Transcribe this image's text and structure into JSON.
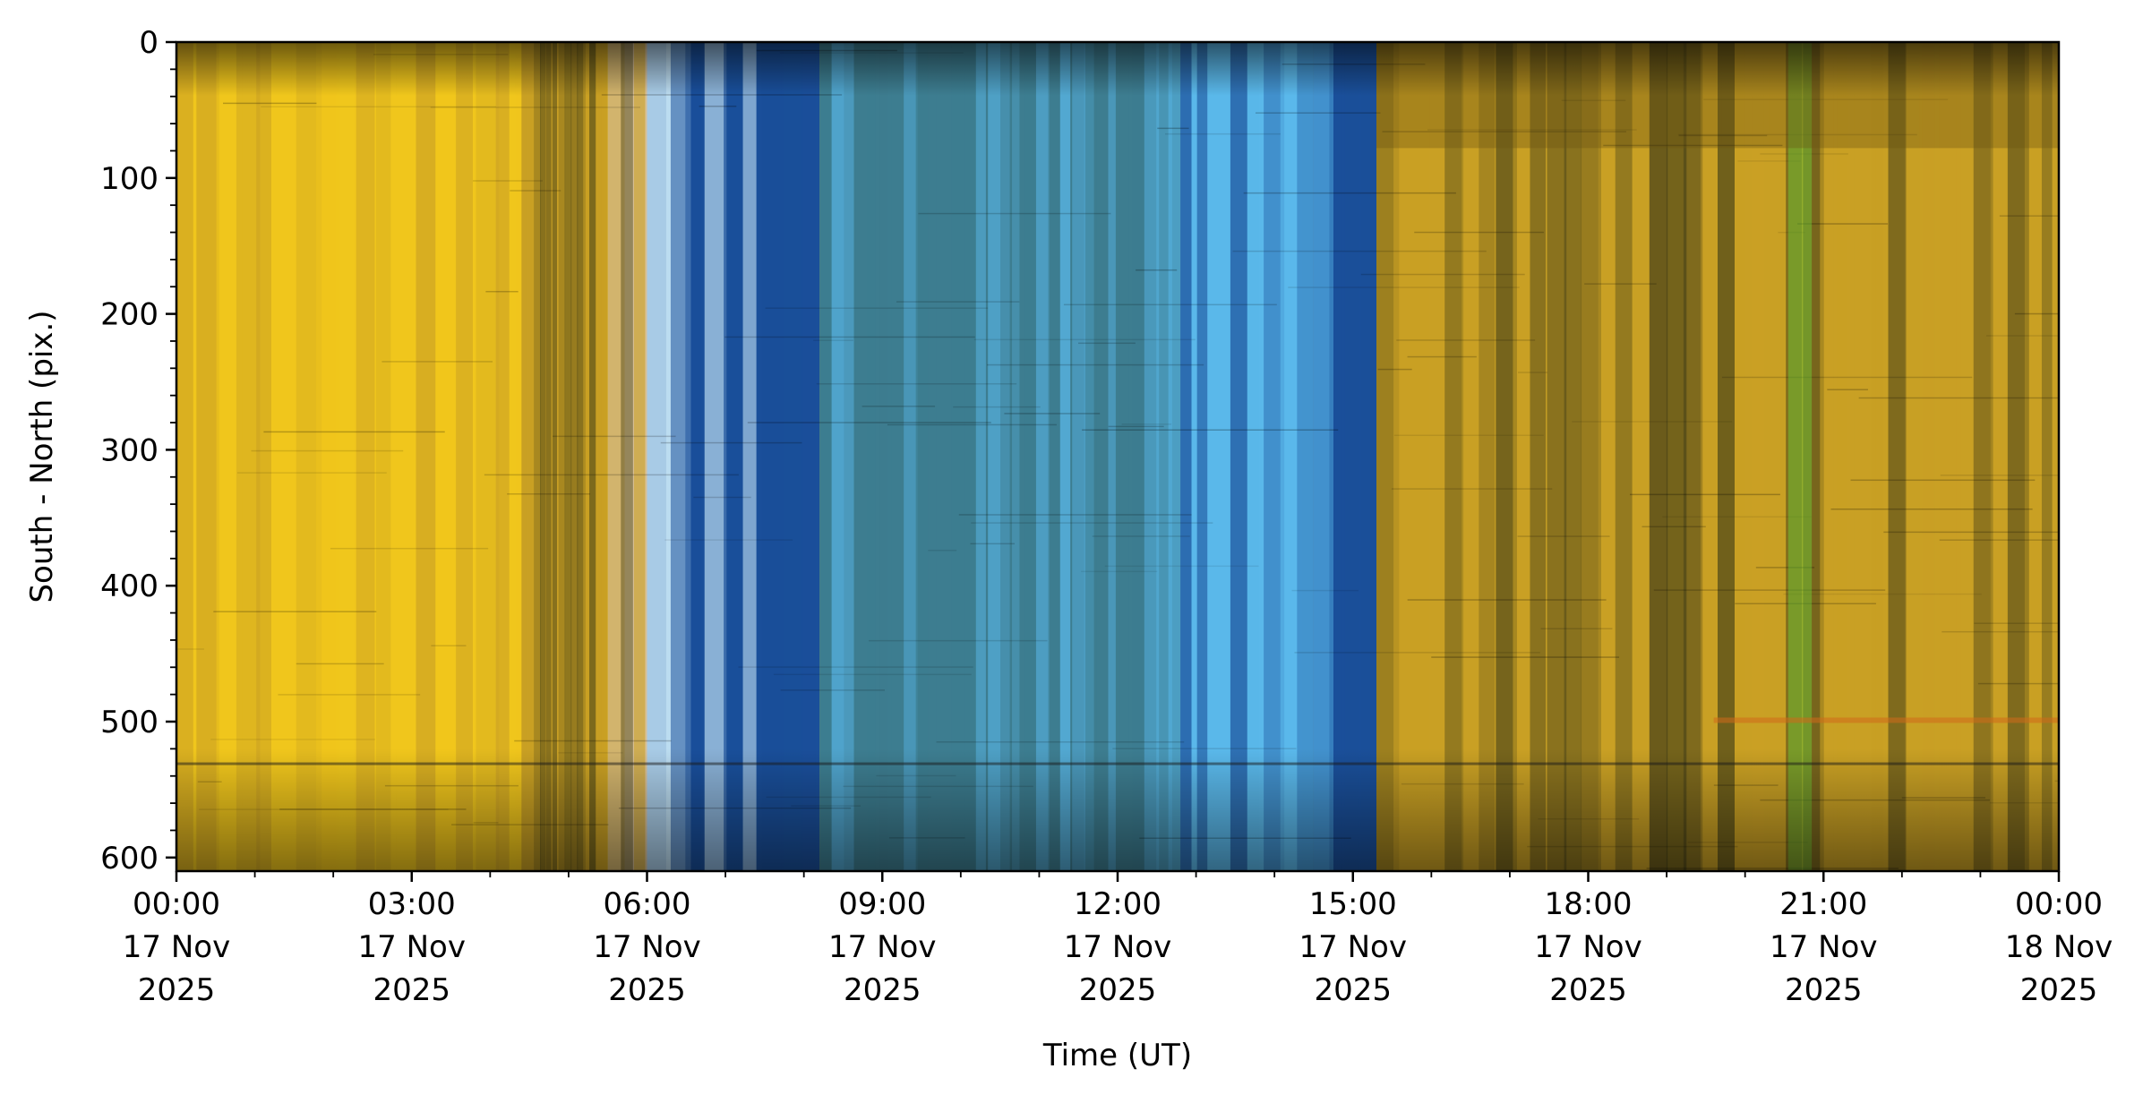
{
  "chart_data": {
    "type": "heatmap",
    "title": "",
    "xlabel": "Time (UT)",
    "ylabel": "South - North (pix.)",
    "ylim": [
      610,
      0
    ],
    "y_ticks": [
      0,
      100,
      200,
      300,
      400,
      500,
      600
    ],
    "x_range_hours": [
      0,
      24
    ],
    "x_ticks": [
      {
        "hour": 0,
        "time": "00:00",
        "date": "17 Nov",
        "year": "2025"
      },
      {
        "hour": 3,
        "time": "03:00",
        "date": "17 Nov",
        "year": "2025"
      },
      {
        "hour": 6,
        "time": "06:00",
        "date": "17 Nov",
        "year": "2025"
      },
      {
        "hour": 9,
        "time": "09:00",
        "date": "17 Nov",
        "year": "2025"
      },
      {
        "hour": 12,
        "time": "12:00",
        "date": "17 Nov",
        "year": "2025"
      },
      {
        "hour": 15,
        "time": "15:00",
        "date": "17 Nov",
        "year": "2025"
      },
      {
        "hour": 18,
        "time": "18:00",
        "date": "17 Nov",
        "year": "2025"
      },
      {
        "hour": 21,
        "time": "21:00",
        "date": "17 Nov",
        "year": "2025"
      },
      {
        "hour": 24,
        "time": "00:00",
        "date": "18 Nov",
        "year": "2025"
      }
    ],
    "colors": {
      "bright_yellow": "#f0c61c",
      "mid_yellow": "#c9a024",
      "dark_olive": "#4a4418",
      "deep_blue": "#1a4f9a",
      "sky_blue": "#5ab8ea",
      "pale_cyan": "#d8f4ff",
      "teal": "#3d7d90",
      "green": "#6fd23a",
      "orange": "#d06a1a"
    },
    "segments": [
      {
        "start": 0.0,
        "end": 5.6,
        "base": "bright_yellow",
        "stripe_base": "bright_yellow",
        "stripe_alt": "mid_yellow",
        "stripe_count": 22
      },
      {
        "start": 4.4,
        "end": 5.5,
        "base": "mid_yellow",
        "stripe_base": "mid_yellow",
        "stripe_alt": "dark_olive",
        "stripe_count": 14
      },
      {
        "start": 5.5,
        "end": 6.0,
        "base": "pale_peach",
        "stripe_base": "mid_yellow",
        "stripe_alt": "dark_olive",
        "stripe_count": 3
      },
      {
        "start": 6.0,
        "end": 8.2,
        "base": "deep_blue",
        "stripe_base": "deep_blue",
        "stripe_alt": "pale_cyan",
        "stripe_count": 9
      },
      {
        "start": 8.2,
        "end": 12.8,
        "base": "teal",
        "stripe_base": "teal",
        "stripe_alt": "sky_blue",
        "stripe_count": 30
      },
      {
        "start": 12.8,
        "end": 14.5,
        "base": "sky_blue",
        "stripe_base": "sky_blue",
        "stripe_alt": "deep_blue",
        "stripe_count": 8
      },
      {
        "start": 14.5,
        "end": 15.3,
        "base": "deep_blue",
        "stripe_base": "deep_blue",
        "stripe_alt": "sky_blue",
        "stripe_count": 4
      },
      {
        "start": 15.3,
        "end": 24.0,
        "base": "mid_yellow",
        "stripe_base": "mid_yellow",
        "stripe_alt": "dark_olive",
        "stripe_count": 40
      }
    ]
  }
}
